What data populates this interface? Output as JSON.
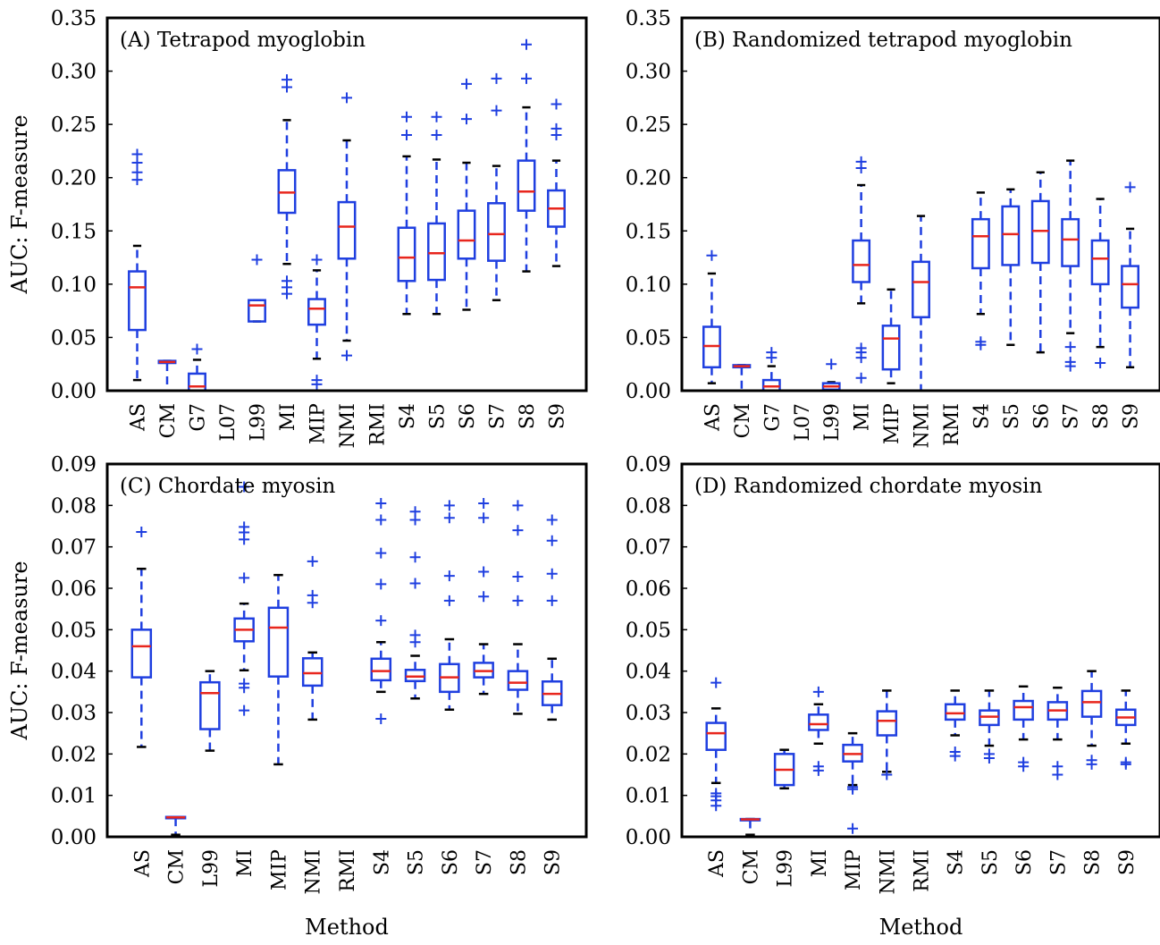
{
  "ylabel": "AUC: F-measure",
  "xlabel": "Method",
  "colors": {
    "box": "#1f3fe0",
    "median": "#e8261d",
    "whisker_cap": "#000000",
    "flier": "#1f3fe0"
  },
  "chart_data": [
    {
      "type": "boxplot",
      "title": "(A) Tetrapod myoglobin",
      "ylabel": "AUC: F-measure",
      "xlabel": "",
      "ylim": [
        0,
        0.35
      ],
      "yticks": [
        "0.00",
        "0.05",
        "0.10",
        "0.15",
        "0.20",
        "0.25",
        "0.30",
        "0.35"
      ],
      "categories": [
        "AS",
        "CM",
        "G7",
        "L07",
        "L99",
        "MI",
        "MIP",
        "NMI",
        "RMI",
        "S4",
        "S5",
        "S6",
        "S7",
        "S8",
        "S9"
      ],
      "boxes": [
        {
          "label": "AS",
          "q1": 0.057,
          "median": 0.097,
          "q3": 0.112,
          "whisker_low": 0.01,
          "whisker_high": 0.136,
          "fliers": [
            0.198,
            0.205,
            0.214,
            0.222
          ]
        },
        {
          "label": "CM",
          "q1": 0.026,
          "median": 0.027,
          "q3": 0.028,
          "whisker_low": 0.0,
          "whisker_high": 0.028,
          "fliers": []
        },
        {
          "label": "G7",
          "q1": 0.0,
          "median": 0.004,
          "q3": 0.016,
          "whisker_low": 0.0,
          "whisker_high": 0.029,
          "fliers": [
            0.039
          ]
        },
        {
          "label": "L07",
          "q1": null,
          "median": null,
          "q3": null,
          "whisker_low": null,
          "whisker_high": null,
          "fliers": []
        },
        {
          "label": "L99",
          "q1": 0.065,
          "median": 0.08,
          "q3": 0.085,
          "whisker_low": 0.065,
          "whisker_high": 0.085,
          "fliers": [
            0.123
          ]
        },
        {
          "label": "MI",
          "q1": 0.167,
          "median": 0.186,
          "q3": 0.207,
          "whisker_low": 0.119,
          "whisker_high": 0.254,
          "fliers": [
            0.091,
            0.097,
            0.103,
            0.285,
            0.292
          ]
        },
        {
          "label": "MIP",
          "q1": 0.062,
          "median": 0.077,
          "q3": 0.086,
          "whisker_low": 0.03,
          "whisker_high": 0.113,
          "fliers": [
            0.006,
            0.01,
            0.123
          ]
        },
        {
          "label": "NMI",
          "q1": 0.124,
          "median": 0.154,
          "q3": 0.177,
          "whisker_low": 0.047,
          "whisker_high": 0.235,
          "fliers": [
            0.033,
            0.275
          ]
        },
        {
          "label": "RMI",
          "q1": null,
          "median": null,
          "q3": null,
          "whisker_low": null,
          "whisker_high": null,
          "fliers": []
        },
        {
          "label": "S4",
          "q1": 0.103,
          "median": 0.125,
          "q3": 0.153,
          "whisker_low": 0.072,
          "whisker_high": 0.22,
          "fliers": [
            0.24,
            0.257
          ]
        },
        {
          "label": "S5",
          "q1": 0.104,
          "median": 0.129,
          "q3": 0.157,
          "whisker_low": 0.072,
          "whisker_high": 0.217,
          "fliers": [
            0.24,
            0.257
          ]
        },
        {
          "label": "S6",
          "q1": 0.124,
          "median": 0.141,
          "q3": 0.169,
          "whisker_low": 0.076,
          "whisker_high": 0.214,
          "fliers": [
            0.255,
            0.288
          ]
        },
        {
          "label": "S7",
          "q1": 0.122,
          "median": 0.147,
          "q3": 0.176,
          "whisker_low": 0.085,
          "whisker_high": 0.211,
          "fliers": [
            0.263,
            0.293
          ]
        },
        {
          "label": "S8",
          "q1": 0.169,
          "median": 0.187,
          "q3": 0.216,
          "whisker_low": 0.112,
          "whisker_high": 0.266,
          "fliers": [
            0.293,
            0.325
          ]
        },
        {
          "label": "S9",
          "q1": 0.154,
          "median": 0.171,
          "q3": 0.188,
          "whisker_low": 0.117,
          "whisker_high": 0.216,
          "fliers": [
            0.24,
            0.246,
            0.269
          ]
        }
      ]
    },
    {
      "type": "boxplot",
      "title": "(B) Randomized tetrapod myoglobin",
      "ylabel": "",
      "xlabel": "",
      "ylim": [
        0,
        0.35
      ],
      "yticks": [
        "0.00",
        "0.05",
        "0.10",
        "0.15",
        "0.20",
        "0.25",
        "0.30",
        "0.35"
      ],
      "categories": [
        "AS",
        "CM",
        "G7",
        "L07",
        "L99",
        "MI",
        "MIP",
        "NMI",
        "RMI",
        "S4",
        "S5",
        "S6",
        "S7",
        "S8",
        "S9"
      ],
      "boxes": [
        {
          "label": "AS",
          "q1": 0.022,
          "median": 0.042,
          "q3": 0.06,
          "whisker_low": 0.007,
          "whisker_high": 0.11,
          "fliers": [
            0.127
          ]
        },
        {
          "label": "CM",
          "q1": 0.022,
          "median": 0.023,
          "q3": 0.024,
          "whisker_low": 0.0,
          "whisker_high": 0.024,
          "fliers": []
        },
        {
          "label": "G7",
          "q1": 0.0,
          "median": 0.004,
          "q3": 0.01,
          "whisker_low": 0.0,
          "whisker_high": 0.023,
          "fliers": [
            0.031,
            0.036
          ]
        },
        {
          "label": "L07",
          "q1": null,
          "median": null,
          "q3": null,
          "whisker_low": null,
          "whisker_high": null,
          "fliers": []
        },
        {
          "label": "L99",
          "q1": 0.001,
          "median": 0.004,
          "q3": 0.007,
          "whisker_low": 0.0,
          "whisker_high": 0.008,
          "fliers": [
            0.025
          ]
        },
        {
          "label": "MI",
          "q1": 0.102,
          "median": 0.118,
          "q3": 0.141,
          "whisker_low": 0.082,
          "whisker_high": 0.193,
          "fliers": [
            0.012,
            0.031,
            0.036,
            0.04,
            0.209,
            0.215
          ]
        },
        {
          "label": "MIP",
          "q1": 0.02,
          "median": 0.049,
          "q3": 0.061,
          "whisker_low": 0.007,
          "whisker_high": 0.095,
          "fliers": []
        },
        {
          "label": "NMI",
          "q1": 0.069,
          "median": 0.102,
          "q3": 0.121,
          "whisker_low": 0.0,
          "whisker_high": 0.164,
          "fliers": []
        },
        {
          "label": "RMI",
          "q1": null,
          "median": null,
          "q3": null,
          "whisker_low": null,
          "whisker_high": null,
          "fliers": []
        },
        {
          "label": "S4",
          "q1": 0.115,
          "median": 0.145,
          "q3": 0.161,
          "whisker_low": 0.072,
          "whisker_high": 0.186,
          "fliers": [
            0.043,
            0.046
          ]
        },
        {
          "label": "S5",
          "q1": 0.118,
          "median": 0.147,
          "q3": 0.173,
          "whisker_low": 0.043,
          "whisker_high": 0.189,
          "fliers": []
        },
        {
          "label": "S6",
          "q1": 0.12,
          "median": 0.15,
          "q3": 0.178,
          "whisker_low": 0.036,
          "whisker_high": 0.205,
          "fliers": []
        },
        {
          "label": "S7",
          "q1": 0.117,
          "median": 0.142,
          "q3": 0.161,
          "whisker_low": 0.054,
          "whisker_high": 0.216,
          "fliers": [
            0.023,
            0.027,
            0.041
          ]
        },
        {
          "label": "S8",
          "q1": 0.1,
          "median": 0.124,
          "q3": 0.141,
          "whisker_low": 0.041,
          "whisker_high": 0.18,
          "fliers": [
            0.026
          ]
        },
        {
          "label": "S9",
          "q1": 0.078,
          "median": 0.1,
          "q3": 0.117,
          "whisker_low": 0.022,
          "whisker_high": 0.152,
          "fliers": [
            0.191
          ]
        }
      ]
    },
    {
      "type": "boxplot",
      "title": "(C) Chordate myosin",
      "ylabel": "AUC: F-measure",
      "xlabel": "Method",
      "ylim": [
        0,
        0.09
      ],
      "yticks": [
        "0.00",
        "0.01",
        "0.02",
        "0.03",
        "0.04",
        "0.05",
        "0.06",
        "0.07",
        "0.08",
        "0.09"
      ],
      "categories": [
        "AS",
        "CM",
        "L99",
        "MI",
        "MIP",
        "NMI",
        "RMI",
        "S4",
        "S5",
        "S6",
        "S7",
        "S8",
        "S9"
      ],
      "boxes": [
        {
          "label": "AS",
          "q1": 0.0385,
          "median": 0.046,
          "q3": 0.05,
          "whisker_low": 0.0217,
          "whisker_high": 0.0647,
          "fliers": [
            0.0736
          ]
        },
        {
          "label": "CM",
          "q1": 0.0045,
          "median": 0.0047,
          "q3": 0.0048,
          "whisker_low": 0.0005,
          "whisker_high": 0.0048,
          "fliers": []
        },
        {
          "label": "L99",
          "q1": 0.026,
          "median": 0.0347,
          "q3": 0.0373,
          "whisker_low": 0.0208,
          "whisker_high": 0.04,
          "fliers": []
        },
        {
          "label": "MI",
          "q1": 0.0472,
          "median": 0.05,
          "q3": 0.0527,
          "whisker_low": 0.0402,
          "whisker_high": 0.0563,
          "fliers": [
            0.0305,
            0.036,
            0.037,
            0.0625,
            0.0718,
            0.0735,
            0.0748,
            0.0845
          ]
        },
        {
          "label": "MIP",
          "q1": 0.0387,
          "median": 0.0505,
          "q3": 0.0553,
          "whisker_low": 0.0175,
          "whisker_high": 0.0632,
          "fliers": []
        },
        {
          "label": "NMI",
          "q1": 0.0365,
          "median": 0.0395,
          "q3": 0.0431,
          "whisker_low": 0.0283,
          "whisker_high": 0.0445,
          "fliers": [
            0.0565,
            0.0583,
            0.0665
          ]
        },
        {
          "label": "RMI",
          "q1": null,
          "median": null,
          "q3": null,
          "whisker_low": null,
          "whisker_high": null,
          "fliers": []
        },
        {
          "label": "S4",
          "q1": 0.0378,
          "median": 0.04,
          "q3": 0.043,
          "whisker_low": 0.035,
          "whisker_high": 0.047,
          "fliers": [
            0.0285,
            0.0522,
            0.061,
            0.0685,
            0.0765,
            0.0805
          ]
        },
        {
          "label": "S5",
          "q1": 0.0376,
          "median": 0.0387,
          "q3": 0.0403,
          "whisker_low": 0.0334,
          "whisker_high": 0.0437,
          "fliers": [
            0.047,
            0.0487,
            0.0612,
            0.0675,
            0.0765,
            0.0785
          ]
        },
        {
          "label": "S6",
          "q1": 0.035,
          "median": 0.0385,
          "q3": 0.0417,
          "whisker_low": 0.0307,
          "whisker_high": 0.0477,
          "fliers": [
            0.057,
            0.063,
            0.077,
            0.08
          ]
        },
        {
          "label": "S7",
          "q1": 0.0385,
          "median": 0.04,
          "q3": 0.042,
          "whisker_low": 0.0345,
          "whisker_high": 0.0465,
          "fliers": [
            0.058,
            0.064,
            0.077,
            0.0805
          ]
        },
        {
          "label": "S8",
          "q1": 0.0355,
          "median": 0.0372,
          "q3": 0.04,
          "whisker_low": 0.0297,
          "whisker_high": 0.0465,
          "fliers": [
            0.057,
            0.0628,
            0.074,
            0.08
          ]
        },
        {
          "label": "S9",
          "q1": 0.0318,
          "median": 0.0345,
          "q3": 0.0375,
          "whisker_low": 0.0283,
          "whisker_high": 0.043,
          "fliers": [
            0.057,
            0.0635,
            0.0715,
            0.0765
          ]
        }
      ]
    },
    {
      "type": "boxplot",
      "title": "(D) Randomized chordate myosin",
      "ylabel": "",
      "xlabel": "Method",
      "ylim": [
        0,
        0.09
      ],
      "yticks": [
        "0.00",
        "0.01",
        "0.02",
        "0.03",
        "0.04",
        "0.05",
        "0.06",
        "0.07",
        "0.08",
        "0.09"
      ],
      "categories": [
        "AS",
        "CM",
        "L99",
        "MI",
        "MIP",
        "NMI",
        "RMI",
        "S4",
        "S5",
        "S6",
        "S7",
        "S8",
        "S9"
      ],
      "boxes": [
        {
          "label": "AS",
          "q1": 0.021,
          "median": 0.025,
          "q3": 0.0275,
          "whisker_low": 0.013,
          "whisker_high": 0.031,
          "fliers": [
            0.0075,
            0.0088,
            0.0098,
            0.0105,
            0.0372
          ]
        },
        {
          "label": "CM",
          "q1": 0.004,
          "median": 0.0042,
          "q3": 0.0043,
          "whisker_low": 0.0005,
          "whisker_high": 0.0043,
          "fliers": []
        },
        {
          "label": "L99",
          "q1": 0.0125,
          "median": 0.0162,
          "q3": 0.02,
          "whisker_low": 0.0117,
          "whisker_high": 0.021,
          "fliers": []
        },
        {
          "label": "MI",
          "q1": 0.0258,
          "median": 0.0272,
          "q3": 0.0295,
          "whisker_low": 0.0225,
          "whisker_high": 0.032,
          "fliers": [
            0.016,
            0.017,
            0.035
          ]
        },
        {
          "label": "MIP",
          "q1": 0.0182,
          "median": 0.02,
          "q3": 0.0222,
          "whisker_low": 0.0125,
          "whisker_high": 0.025,
          "fliers": [
            0.002,
            0.0115,
            0.012
          ]
        },
        {
          "label": "NMI",
          "q1": 0.0245,
          "median": 0.028,
          "q3": 0.0303,
          "whisker_low": 0.0157,
          "whisker_high": 0.0353,
          "fliers": [
            0.015
          ]
        },
        {
          "label": "RMI",
          "q1": null,
          "median": null,
          "q3": null,
          "whisker_low": null,
          "whisker_high": null,
          "fliers": []
        },
        {
          "label": "S4",
          "q1": 0.0283,
          "median": 0.0298,
          "q3": 0.032,
          "whisker_low": 0.0245,
          "whisker_high": 0.0353,
          "fliers": [
            0.0195,
            0.0205
          ]
        },
        {
          "label": "S5",
          "q1": 0.027,
          "median": 0.029,
          "q3": 0.0305,
          "whisker_low": 0.022,
          "whisker_high": 0.0353,
          "fliers": [
            0.019,
            0.02
          ]
        },
        {
          "label": "S6",
          "q1": 0.0283,
          "median": 0.0313,
          "q3": 0.0328,
          "whisker_low": 0.0235,
          "whisker_high": 0.0363,
          "fliers": [
            0.017,
            0.018
          ]
        },
        {
          "label": "S7",
          "q1": 0.0283,
          "median": 0.0305,
          "q3": 0.0325,
          "whisker_low": 0.0235,
          "whisker_high": 0.036,
          "fliers": [
            0.015,
            0.017
          ]
        },
        {
          "label": "S8",
          "q1": 0.029,
          "median": 0.0325,
          "q3": 0.0352,
          "whisker_low": 0.022,
          "whisker_high": 0.04,
          "fliers": [
            0.0175,
            0.0185
          ]
        },
        {
          "label": "S9",
          "q1": 0.027,
          "median": 0.0288,
          "q3": 0.0307,
          "whisker_low": 0.0225,
          "whisker_high": 0.0353,
          "fliers": [
            0.0175,
            0.018
          ]
        }
      ]
    }
  ]
}
